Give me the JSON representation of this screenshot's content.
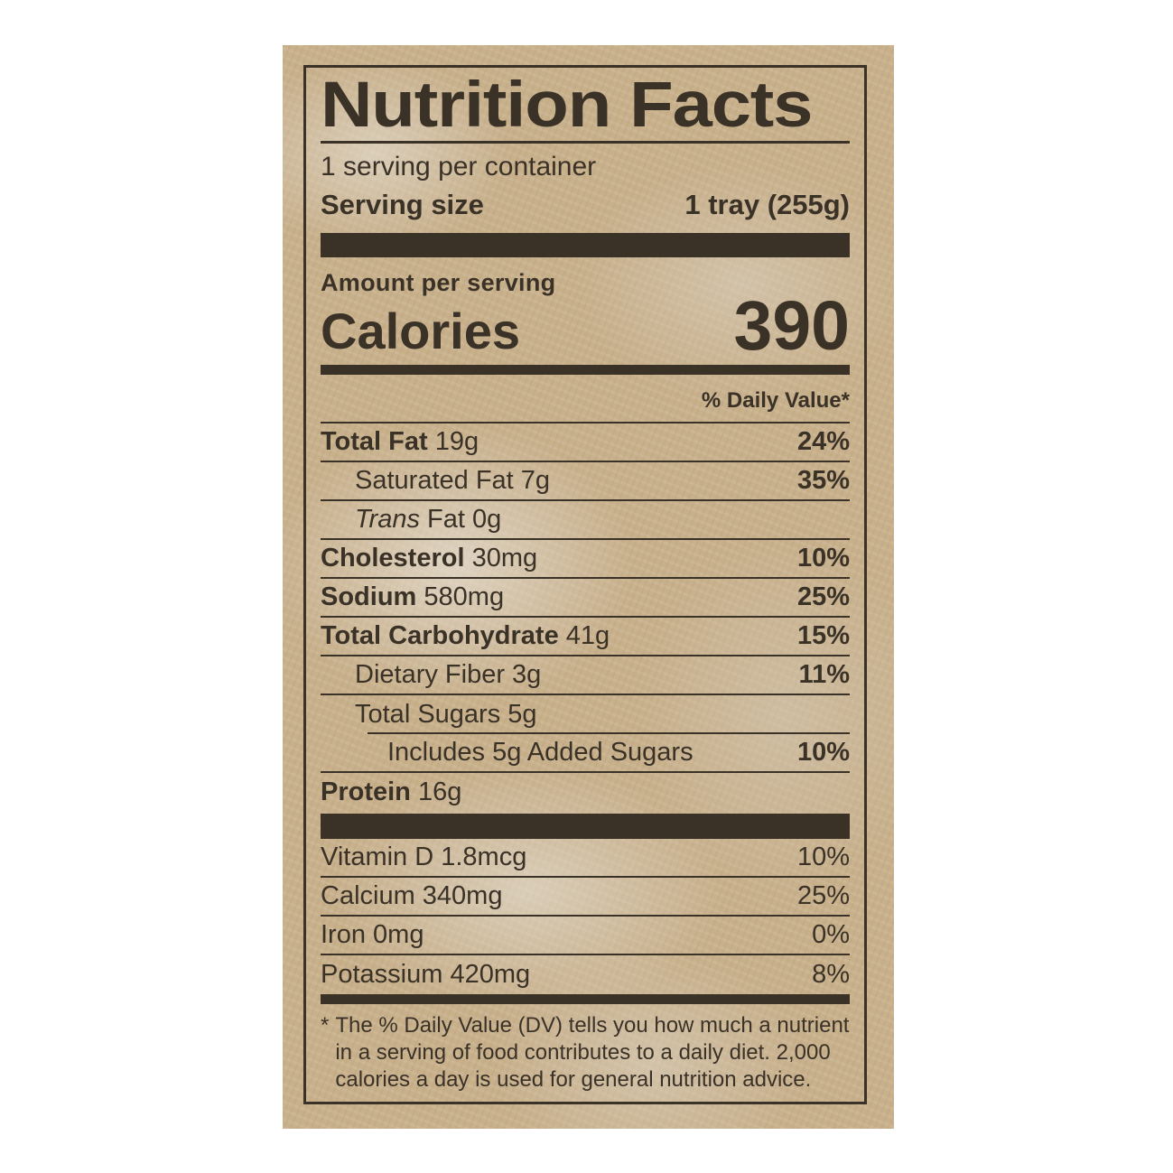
{
  "colors": {
    "ink": "#3a3127",
    "paper": "#c8b08b",
    "page_bg": "#ffffff"
  },
  "label": {
    "title": "Nutrition Facts",
    "servings_per_container": "1 serving per container",
    "serving_size_label": "Serving size",
    "serving_size_value": "1 tray (255g)",
    "amount_per_serving": "Amount per serving",
    "calories_label": "Calories",
    "calories_value": "390",
    "daily_value_header": "% Daily Value*",
    "nutrients": [
      {
        "bold": "Total Fat",
        "rest": " 19g",
        "dv": "24%"
      },
      {
        "rest": "Saturated Fat 7g",
        "dv": "35%"
      },
      {
        "italic": "Trans",
        "rest": " Fat 0g",
        "dv": ""
      },
      {
        "bold": "Cholesterol",
        "rest": " 30mg",
        "dv": "10%"
      },
      {
        "bold": "Sodium",
        "rest": " 580mg",
        "dv": "25%"
      },
      {
        "bold": "Total Carbohydrate",
        "rest": " 41g",
        "dv": "15%"
      },
      {
        "rest": "Dietary Fiber 3g",
        "dv": "11%"
      },
      {
        "rest": "Total Sugars 5g",
        "dv": ""
      },
      {
        "rest": "Includes 5g Added Sugars",
        "dv": "10%"
      },
      {
        "bold": "Protein",
        "rest": " 16g",
        "dv": ""
      }
    ],
    "vitamins": [
      {
        "text": "Vitamin D 1.8mcg",
        "dv": "10%"
      },
      {
        "text": "Calcium 340mg",
        "dv": "25%"
      },
      {
        "text": "Iron 0mg",
        "dv": "0%"
      },
      {
        "text": "Potassium 420mg",
        "dv": "8%"
      }
    ],
    "footnote_marker": "*",
    "footnote_text": "The % Daily Value (DV) tells you how much a nutrient in a serving of food contributes to a daily diet. 2,000 calories a day is used for general nutrition advice."
  }
}
